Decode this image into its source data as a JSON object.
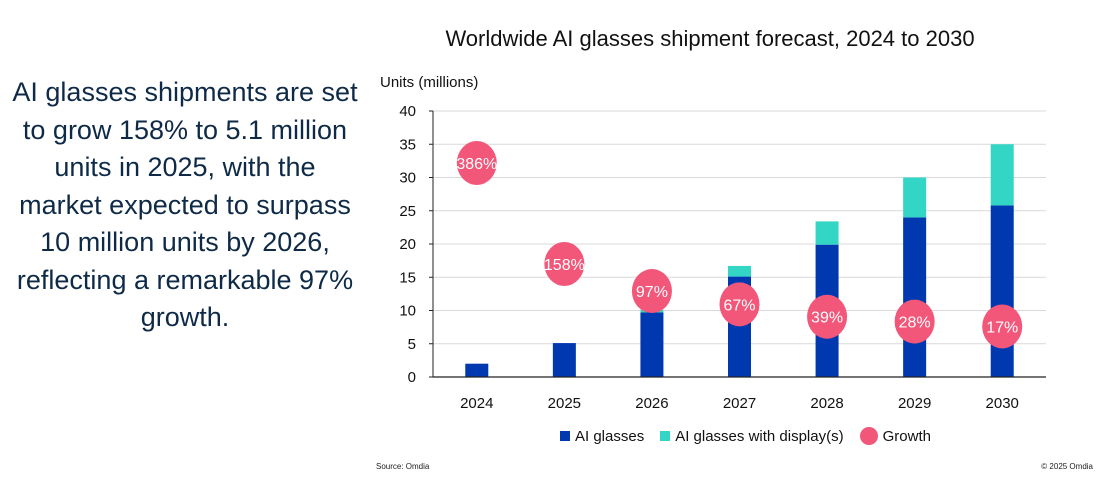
{
  "headline": "AI glasses shipments are set to grow 158% to 5.1 million units in 2025, with the market expected to surpass 10 million units by 2026, reflecting a remarkable 97% growth.",
  "source": "Source: Omdia",
  "copyright": "© 2025 Omdia",
  "chart_data": {
    "type": "bar",
    "stacked": true,
    "title": "Worldwide AI glasses shipment forecast, 2024 to 2030",
    "ylabel": "Units (millions)",
    "xlabel": "",
    "ylim": [
      0,
      40
    ],
    "yticks": [
      0,
      5,
      10,
      15,
      20,
      25,
      30,
      35,
      40
    ],
    "grid": true,
    "legend_position": "bottom",
    "categories": [
      "2024",
      "2025",
      "2026",
      "2027",
      "2028",
      "2029",
      "2030"
    ],
    "series": [
      {
        "name": "AI glasses",
        "color": "#0038b0",
        "values": [
          2.0,
          5.1,
          9.7,
          15.1,
          19.9,
          24.0,
          25.8
        ]
      },
      {
        "name": "AI glasses with display(s)",
        "color": "#33d6c5",
        "values": [
          0,
          0,
          0.4,
          1.6,
          3.5,
          6.0,
          9.2
        ]
      }
    ],
    "growth": {
      "name": "Growth",
      "color": "#f25679",
      "labels": [
        "386%",
        "158%",
        "97%",
        "67%",
        "39%",
        "28%",
        "17%"
      ],
      "values": [
        386,
        158,
        97,
        67,
        39,
        28,
        17
      ]
    }
  }
}
